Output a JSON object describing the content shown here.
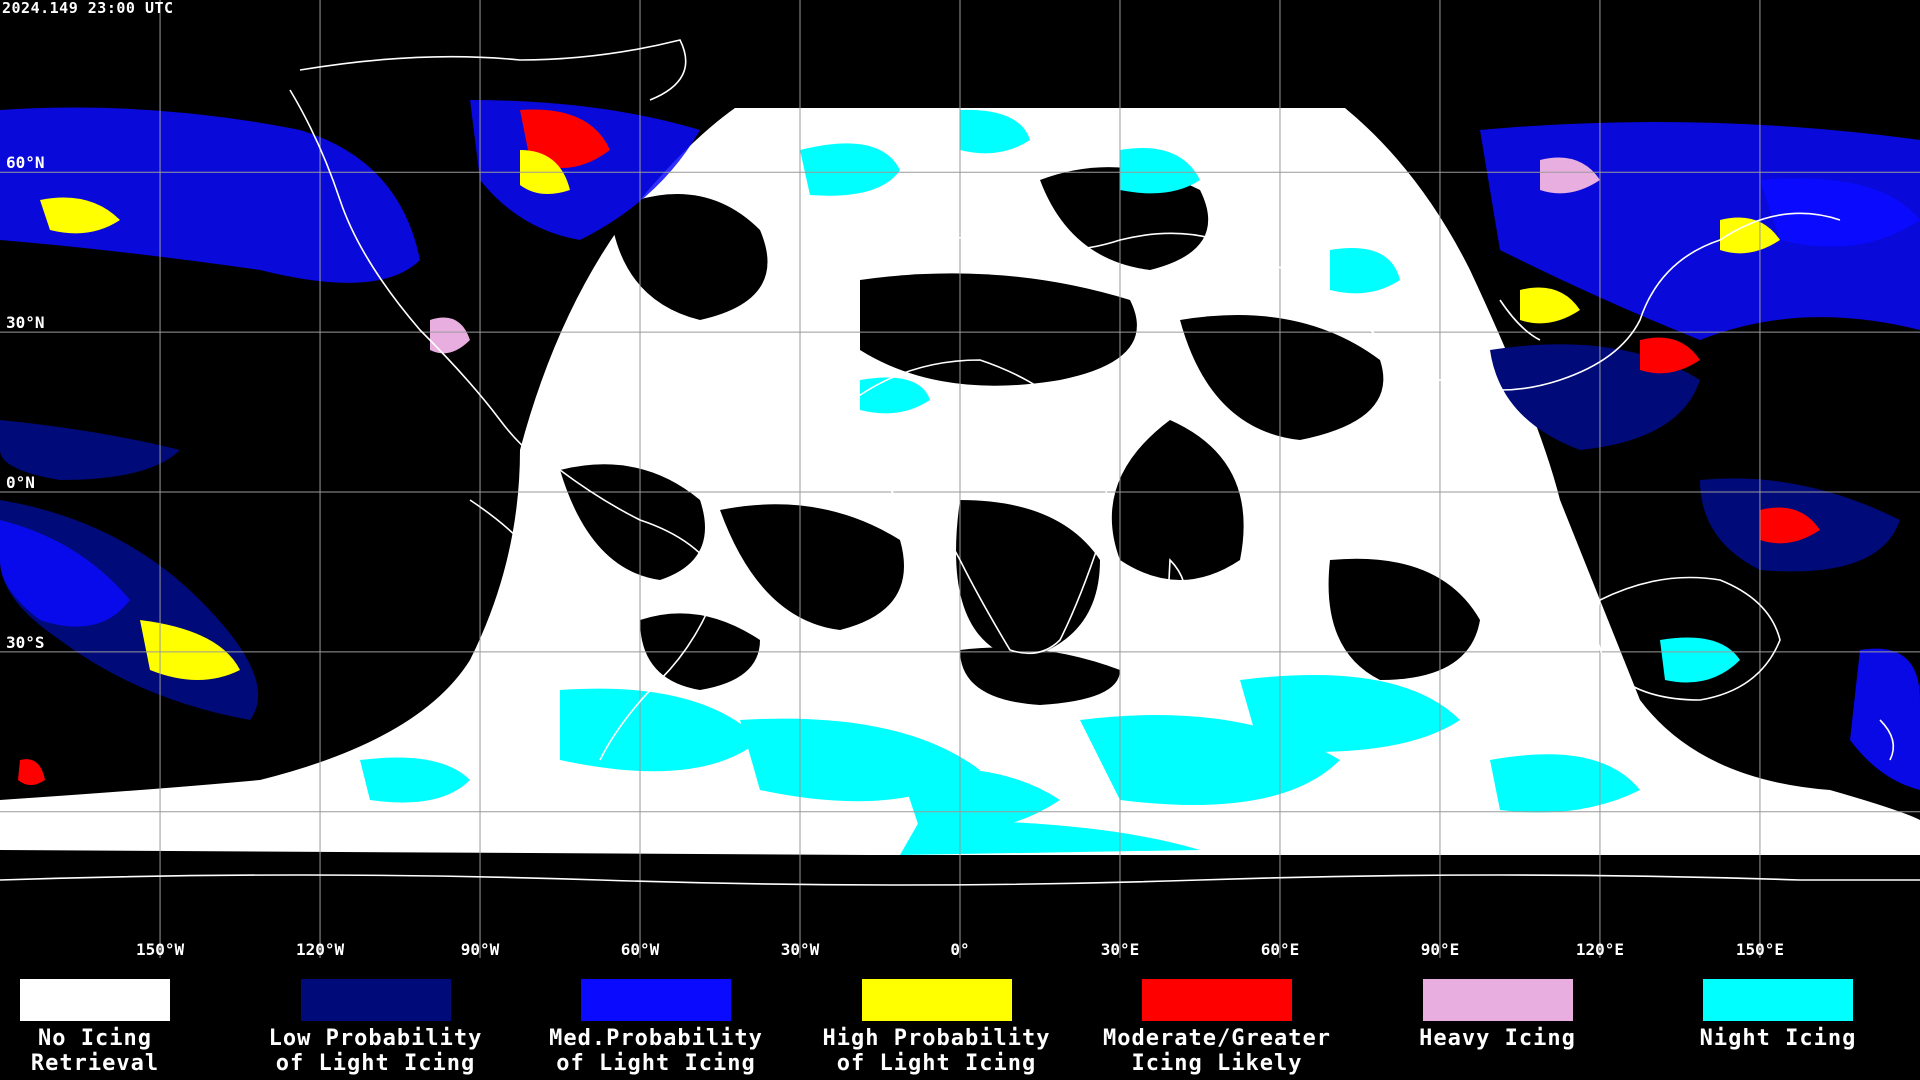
{
  "header": {
    "timestamp": "2024.149 23:00 UTC"
  },
  "map": {
    "background": "#000000",
    "grid_color": "#9a9a9a",
    "coastline_color": "#ffffff",
    "lat_labels": [
      {
        "lat": 60,
        "label": "60°N"
      },
      {
        "lat": 30,
        "label": "30°N"
      },
      {
        "lat": 0,
        "label": "0°N"
      },
      {
        "lat": -30,
        "label": "30°S"
      }
    ],
    "lon_labels": [
      {
        "lon": -150,
        "label": "150°W"
      },
      {
        "lon": -120,
        "label": "120°W"
      },
      {
        "lon": -90,
        "label": "90°W"
      },
      {
        "lon": -60,
        "label": "60°W"
      },
      {
        "lon": -30,
        "label": "30°W"
      },
      {
        "lon": 0,
        "label": "0°"
      },
      {
        "lon": 30,
        "label": "30°E"
      },
      {
        "lon": 60,
        "label": "60°E"
      },
      {
        "lon": 90,
        "label": "90°E"
      },
      {
        "lon": 120,
        "label": "120°E"
      },
      {
        "lon": 150,
        "label": "150°E"
      }
    ]
  },
  "legend": {
    "items": [
      {
        "label": "No Icing\nRetrieval",
        "color": "#ffffff"
      },
      {
        "label": "Low Probability\nof Light Icing",
        "color": "#000a78"
      },
      {
        "label": "Med.Probability\nof Light Icing",
        "color": "#0a0aff"
      },
      {
        "label": "High Probability\nof Light Icing",
        "color": "#ffff00"
      },
      {
        "label": "Moderate/Greater\nIcing Likely",
        "color": "#ff0000"
      },
      {
        "label": "Heavy Icing",
        "color": "#e8aee0"
      },
      {
        "label": "Night Icing",
        "color": "#00ffff"
      }
    ]
  }
}
